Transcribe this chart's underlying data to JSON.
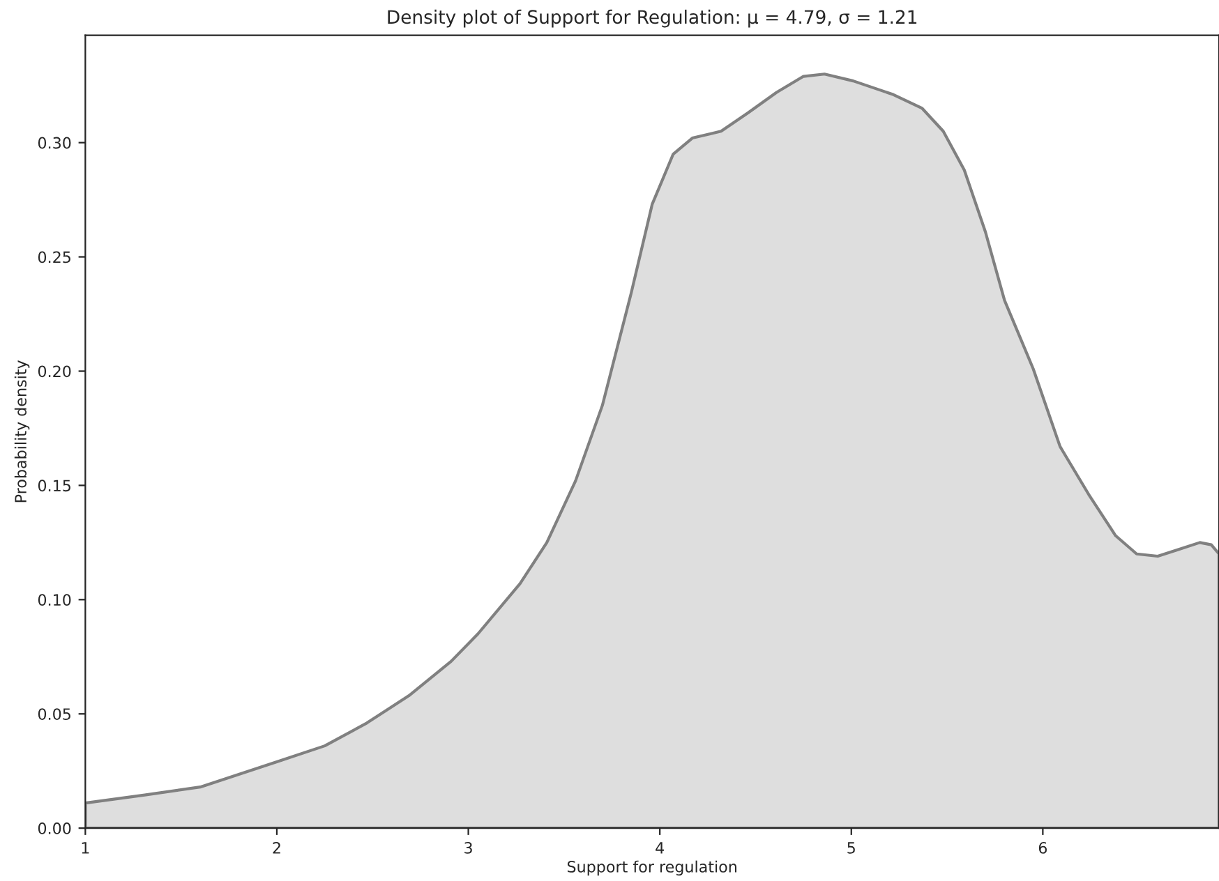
{
  "chart_data": {
    "type": "area",
    "title": "Density plot of Support for Regulation: μ = 4.79, σ = 1.21",
    "xlabel": "Support for regulation",
    "ylabel": "Probability density",
    "xlim": [
      1,
      6.92
    ],
    "xticks": [
      1,
      2,
      3,
      4,
      5,
      6
    ],
    "ylim": [
      0,
      0.347
    ],
    "yticks": [
      {
        "value": 0,
        "label": "0.00"
      },
      {
        "value": 0.05,
        "label": "0.05"
      },
      {
        "value": 0.1,
        "label": "0.10"
      },
      {
        "value": 0.15,
        "label": "0.15"
      },
      {
        "value": 0.2,
        "label": "0.20"
      },
      {
        "value": 0.25,
        "label": "0.25"
      },
      {
        "value": 0.3,
        "label": "0.30"
      }
    ],
    "grid": false,
    "legend": false,
    "series": [
      {
        "color": "#dedede",
        "x": [
          1.0,
          1.31,
          1.6,
          2.0,
          2.25,
          2.47,
          2.69,
          2.91,
          3.05,
          3.27,
          3.41,
          3.56,
          3.7,
          3.85,
          3.96,
          4.07,
          4.17,
          4.32,
          4.46,
          4.61,
          4.75,
          4.86,
          5.01,
          5.22,
          5.37,
          5.48,
          5.59,
          5.7,
          5.8,
          5.95,
          6.09,
          6.24,
          6.38,
          6.49,
          6.6,
          6.71,
          6.82,
          6.88,
          6.92
        ],
        "values": [
          0.011,
          0.0145,
          0.018,
          0.029,
          0.036,
          0.046,
          0.058,
          0.073,
          0.085,
          0.107,
          0.125,
          0.152,
          0.185,
          0.234,
          0.273,
          0.295,
          0.302,
          0.305,
          0.313,
          0.322,
          0.329,
          0.33,
          0.327,
          0.321,
          0.315,
          0.305,
          0.288,
          0.261,
          0.231,
          0.201,
          0.167,
          0.146,
          0.128,
          0.12,
          0.119,
          0.122,
          0.125,
          0.124,
          0.12
        ]
      }
    ]
  }
}
